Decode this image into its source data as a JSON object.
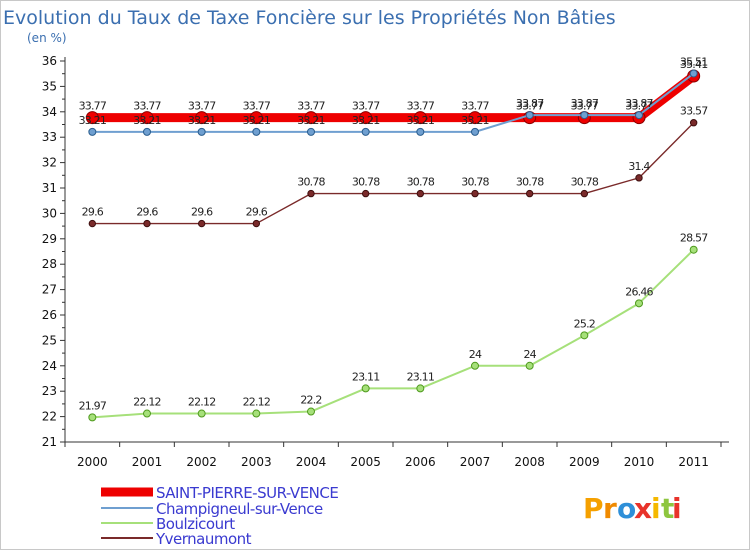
{
  "chart_data": {
    "type": "line",
    "title": "Evolution du Taux de Taxe Foncière sur les Propriétés Non Bâties",
    "ylabel": "(en %)",
    "xlabel": "",
    "categories": [
      "2000",
      "2001",
      "2002",
      "2003",
      "2004",
      "2005",
      "2006",
      "2007",
      "2008",
      "2009",
      "2010",
      "2011"
    ],
    "ylim": [
      21,
      36
    ],
    "yticks": [
      21,
      22,
      23,
      24,
      25,
      26,
      27,
      28,
      29,
      30,
      31,
      32,
      33,
      34,
      35,
      36
    ],
    "grid": false,
    "series": [
      {
        "name": "SAINT-PIERRE-SUR-VENCE",
        "color": "#ee0000",
        "labels": [
          "33.77",
          "33.77",
          "33.77",
          "33.77",
          "33.77",
          "33.77",
          "33.77",
          "33.77",
          "33.77",
          "33.77",
          "33.77",
          "35.41"
        ],
        "values": [
          33.77,
          33.77,
          33.77,
          33.77,
          33.77,
          33.77,
          33.77,
          33.77,
          33.77,
          33.77,
          33.77,
          35.41
        ]
      },
      {
        "name": "Champigneul-sur-Vence",
        "color": "#6f9fd0",
        "labels": [
          "33.21",
          "33.21",
          "33.21",
          "33.21",
          "33.21",
          "33.21",
          "33.21",
          "33.21",
          "33.87",
          "33.87",
          "33.87",
          "35.51"
        ],
        "values": [
          33.21,
          33.21,
          33.21,
          33.21,
          33.21,
          33.21,
          33.21,
          33.21,
          33.87,
          33.87,
          33.87,
          35.51
        ]
      },
      {
        "name": "Boulzicourt",
        "color": "#a6e07a",
        "labels": [
          "21.97",
          "22.12",
          "22.12",
          "22.12",
          "22.2",
          "23.11",
          "23.11",
          "24",
          "24",
          "25.2",
          "26.46",
          "28.57"
        ],
        "values": [
          21.97,
          22.12,
          22.12,
          22.12,
          22.2,
          23.11,
          23.11,
          24,
          24,
          25.2,
          26.46,
          28.57
        ]
      },
      {
        "name": "Yvernaumont",
        "color": "#7a2a2a",
        "labels": [
          "29.6",
          "29.6",
          "29.6",
          "29.6",
          "30.78",
          "30.78",
          "30.78",
          "30.78",
          "30.78",
          "30.78",
          "31.4",
          "33.57"
        ],
        "values": [
          29.6,
          29.6,
          29.6,
          29.6,
          30.78,
          30.78,
          30.78,
          30.78,
          30.78,
          30.78,
          31.4,
          33.57
        ]
      }
    ]
  },
  "logo": {
    "letters": [
      "P",
      "r",
      "o",
      "x",
      "i",
      "t",
      "i"
    ],
    "colors": [
      "#f5a000",
      "#f08a00",
      "#2e8fd8",
      "#e8332a",
      "#f5b800",
      "#8ec63f",
      "#e8332a"
    ]
  }
}
